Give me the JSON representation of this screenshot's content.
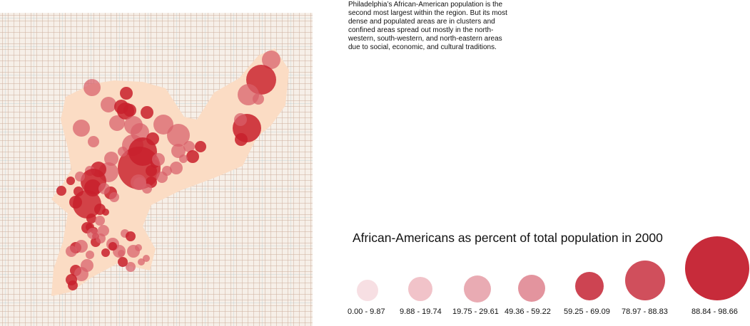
{
  "description": "Philadelphia’s African-American population is the second most largest within the region. But its most dense and populated areas are in clusters and confined areas spread out mostly in the north-western, south-western, and north-eastern areas due to social, economic, and cultural traditions.",
  "legend": {
    "title": "African-Americans as percent of total population in 2000",
    "items": [
      {
        "label": "0.00 - 9.87",
        "color": "#f0c5cc",
        "opacity": 0.55,
        "level": 1
      },
      {
        "label": "9.88 - 19.74",
        "color": "#eaa3ac",
        "opacity": 0.65,
        "level": 2
      },
      {
        "label": "19.75 - 29.61",
        "color": "#e08893",
        "opacity": 0.7,
        "level": 3
      },
      {
        "label": "49.36 - 59.22",
        "color": "#d9707e",
        "opacity": 0.75,
        "level": 4
      },
      {
        "label": "59.25 - 69.09",
        "color": "#c8303f",
        "opacity": 0.9,
        "level": 5
      },
      {
        "label": "78.97 - 88.83",
        "color": "#c8303f",
        "opacity": 0.85,
        "level": 6
      },
      {
        "label": "88.84 - 98.66",
        "color": "#c4202f",
        "opacity": 0.95,
        "level": 7
      }
    ]
  },
  "colors": {
    "city_fill": "#fbdcc4",
    "circle_dark": "#c8202c",
    "circle_mid": "#d8606a",
    "circle_light": "#e49a9a"
  }
}
